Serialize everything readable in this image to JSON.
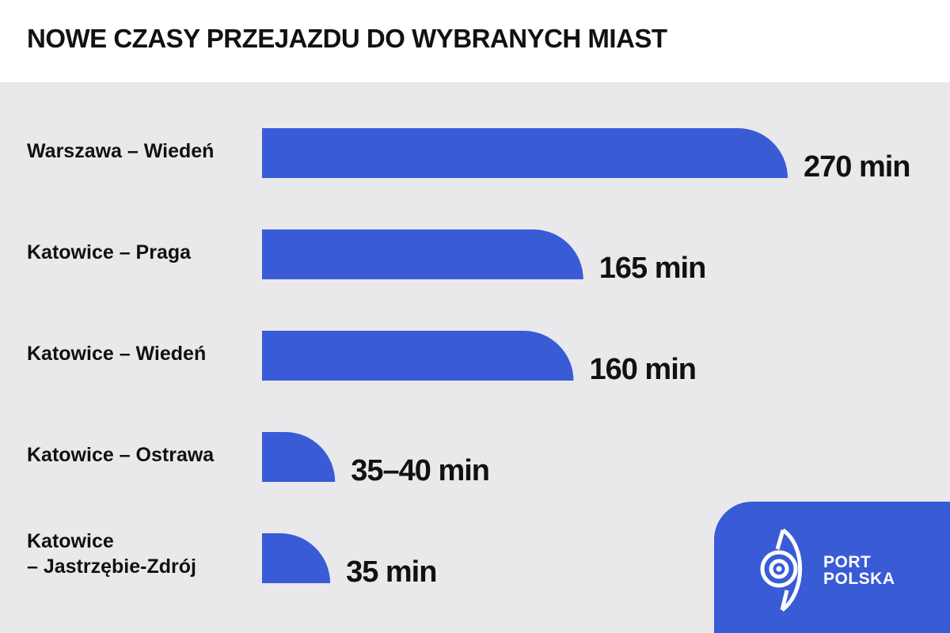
{
  "header": {
    "title": "NOWE CZASY PRZEJAZDU DO WYBRANYCH MIAST"
  },
  "colors": {
    "bar": "#3a5bd6",
    "background": "#e9e9ec",
    "header_bg": "#ffffff",
    "text": "#111111"
  },
  "chart_data": {
    "type": "bar",
    "orientation": "horizontal",
    "title": "NOWE CZASY PRZEJAZDU DO WYBRANYCH MIAST",
    "unit": "min",
    "categories": [
      [
        "Warszawa – Wiedeń"
      ],
      [
        "Katowice – Praga"
      ],
      [
        "Katowice – Wiedeń"
      ],
      [
        "Katowice – Ostrawa"
      ],
      [
        "Katowice",
        "– Jastrzębie-Zdrój"
      ]
    ],
    "values": [
      270,
      165,
      160,
      37.5,
      35
    ],
    "value_labels": [
      "270 min",
      "165 min",
      "160 min",
      "35–40 min",
      "35 min"
    ],
    "grid": false,
    "legend": "none"
  },
  "logo": {
    "line1": "PORT",
    "line2": "POLSKA",
    "icon": "port-polska-logo-icon"
  }
}
